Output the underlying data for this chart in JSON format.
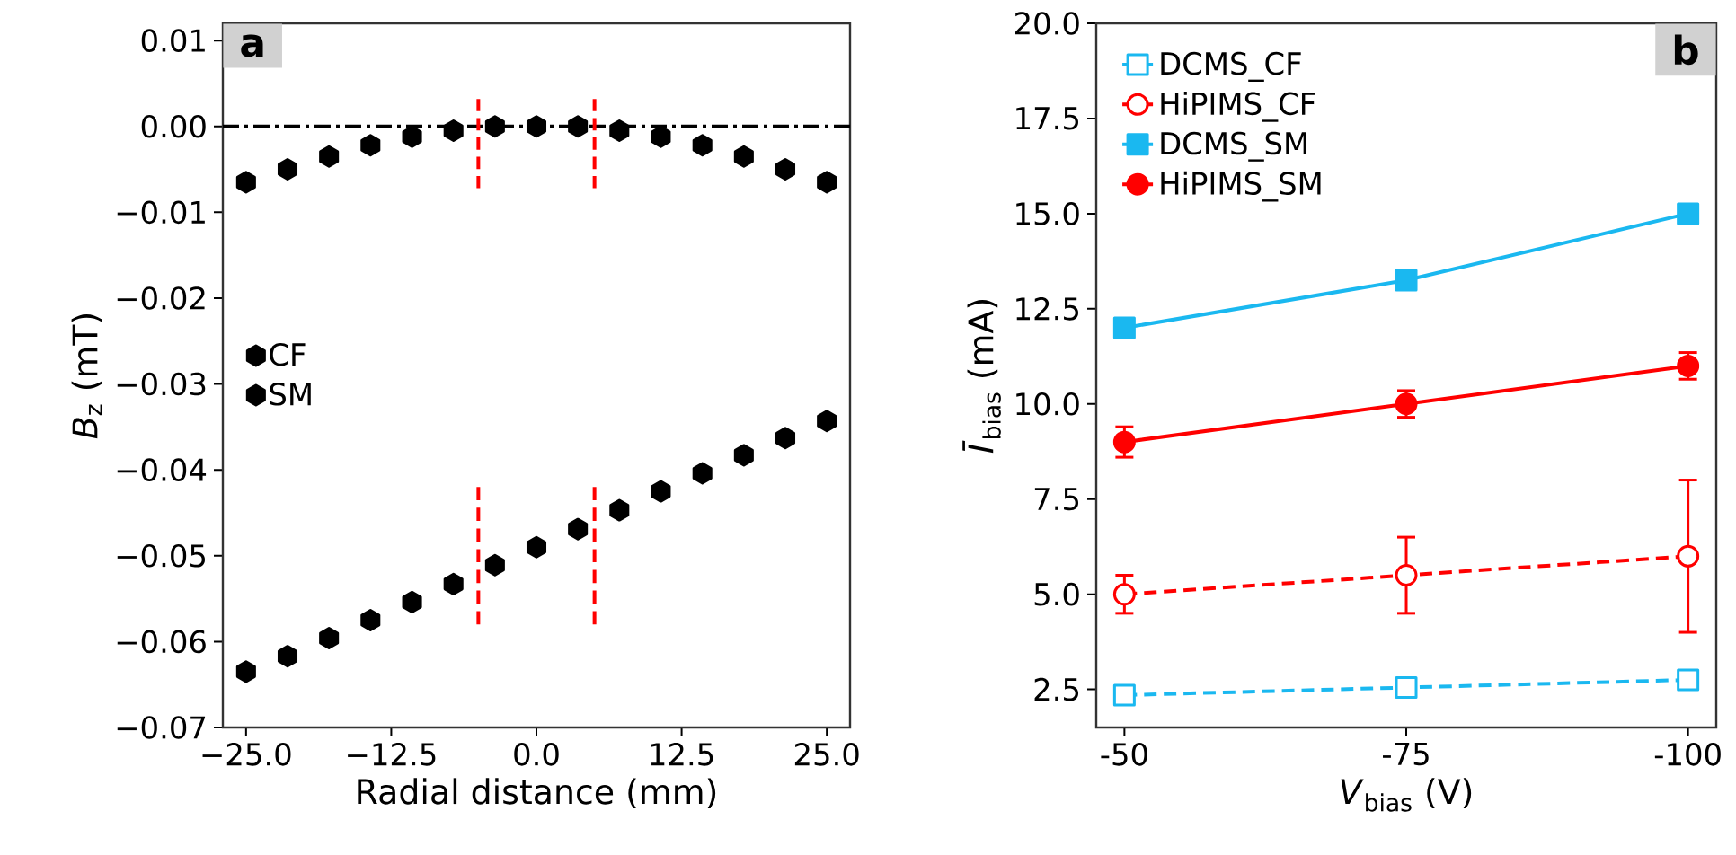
{
  "chart_data": [
    {
      "type": "scatter",
      "xlabel": "Radial distance (mm)",
      "ylabel": "*B*$_{z}$ (mT)",
      "annotations": [
        "a"
      ],
      "legend": "left",
      "xlim": [
        -27,
        27
      ],
      "ylim": [
        -0.07,
        0.012
      ],
      "xticks": [
        {
          "value": -25,
          "label": "−25.0"
        },
        {
          "value": -12.5,
          "label": "−12.5"
        },
        {
          "value": 0,
          "label": "0.0"
        },
        {
          "value": 12.5,
          "label": "12.5"
        },
        {
          "value": 25,
          "label": "25.0"
        }
      ],
      "yticks": [
        {
          "value": 0.01,
          "label": "0.01"
        },
        {
          "value": 0,
          "label": "0.00"
        },
        {
          "value": -0.01,
          "label": "−0.01"
        },
        {
          "value": -0.02,
          "label": "−0.02"
        },
        {
          "value": -0.03,
          "label": "−0.03"
        },
        {
          "value": -0.04,
          "label": "−0.04"
        },
        {
          "value": -0.05,
          "label": "−0.05"
        },
        {
          "value": -0.06,
          "label": "−0.06"
        },
        {
          "value": -0.07,
          "label": "−0.07"
        }
      ],
      "ref_lines": [
        {
          "axis": "y",
          "value": 0,
          "color": "#000000",
          "line_style": "dashdot"
        }
      ],
      "series": [
        {
          "type": "scatter",
          "name": "CF",
          "color": "#000000",
          "x": [
            -25,
            -21.43,
            -17.86,
            -14.29,
            -10.71,
            -7.14,
            -3.57,
            0,
            3.57,
            7.14,
            10.71,
            14.29,
            17.86,
            21.43,
            25
          ],
          "values": [
            -0.0065,
            -0.005,
            -0.0035,
            -0.0022,
            -0.0012,
            -0.0005,
            0,
            0,
            0,
            -0.0005,
            -0.0012,
            -0.0022,
            -0.0035,
            -0.005,
            -0.0065
          ]
        },
        {
          "type": "scatter",
          "name": "SM",
          "color": "#000000",
          "x": [
            -25,
            -21.43,
            -17.86,
            -14.29,
            -10.71,
            -7.14,
            -3.57,
            0,
            3.57,
            7.14,
            10.71,
            14.29,
            17.86,
            21.43,
            25
          ],
          "values": [
            -0.0635,
            -0.0617,
            -0.0596,
            -0.0575,
            -0.0554,
            -0.0533,
            -0.0511,
            -0.049,
            -0.0469,
            -0.0447,
            -0.0425,
            -0.0404,
            -0.0383,
            -0.0363,
            -0.0343
          ]
        },
        {
          "type": "line",
          "color": "#ff0000",
          "line_style": "dashed",
          "marker": "none",
          "x": [
            -5,
            -5
          ],
          "values": [
            0.0032,
            -0.0072
          ]
        },
        {
          "type": "line",
          "color": "#ff0000",
          "line_style": "dashed",
          "marker": "none",
          "x": [
            5,
            5
          ],
          "values": [
            0.0032,
            -0.0072
          ]
        },
        {
          "type": "line",
          "color": "#ff0000",
          "line_style": "dashed",
          "marker": "none",
          "x": [
            -5,
            -5
          ],
          "values": [
            -0.042,
            -0.058
          ]
        },
        {
          "type": "line",
          "color": "#ff0000",
          "line_style": "dashed",
          "marker": "none",
          "x": [
            5,
            5
          ],
          "values": [
            -0.042,
            -0.058
          ]
        }
      ]
    },
    {
      "type": "line",
      "xlabel": "*V*$_{bias}$ (V)",
      "ylabel": "*Ī*$_{bias}$ (mA)",
      "annotations": [
        "b"
      ],
      "legend": "top left",
      "categories": [
        "-50",
        "-75",
        "-100"
      ],
      "ylim": [
        1.5,
        20
      ],
      "yticks": [
        {
          "value": 2.5,
          "label": "2.5"
        },
        {
          "value": 5,
          "label": "5.0"
        },
        {
          "value": 7.5,
          "label": "7.5"
        },
        {
          "value": 10,
          "label": "10.0"
        },
        {
          "value": 12.5,
          "label": "12.5"
        },
        {
          "value": 15,
          "label": "15.0"
        },
        {
          "value": 17.5,
          "label": "17.5"
        },
        {
          "value": 20,
          "label": "20.0"
        }
      ],
      "series": [
        {
          "name": "DCMS_CF",
          "color": "#1ab8f0",
          "marker": "square",
          "line_style": "dashed",
          "values": [
            2.35,
            2.55,
            2.75
          ],
          "errors": [
            0.15,
            0.15,
            0.15
          ]
        },
        {
          "name": "HiPIMS_CF",
          "color": "#ff0000",
          "marker": "circle",
          "line_style": "dashed",
          "values": [
            5.0,
            5.5,
            6.0
          ],
          "errors": [
            0.5,
            1.0,
            2.0
          ]
        },
        {
          "name": "DCMS_SM",
          "color": "#1ab8f0",
          "marker": "square",
          "line_style": "solid",
          "values": [
            12.0,
            13.25,
            15.0
          ],
          "errors": [
            0.15,
            0.15,
            0.15
          ]
        },
        {
          "name": "HiPIMS_SM",
          "color": "#ff0000",
          "marker": "circle",
          "line_style": "solid",
          "values": [
            9.0,
            10.0,
            11.0
          ],
          "errors": [
            0.4,
            0.35,
            0.35
          ]
        }
      ]
    }
  ]
}
